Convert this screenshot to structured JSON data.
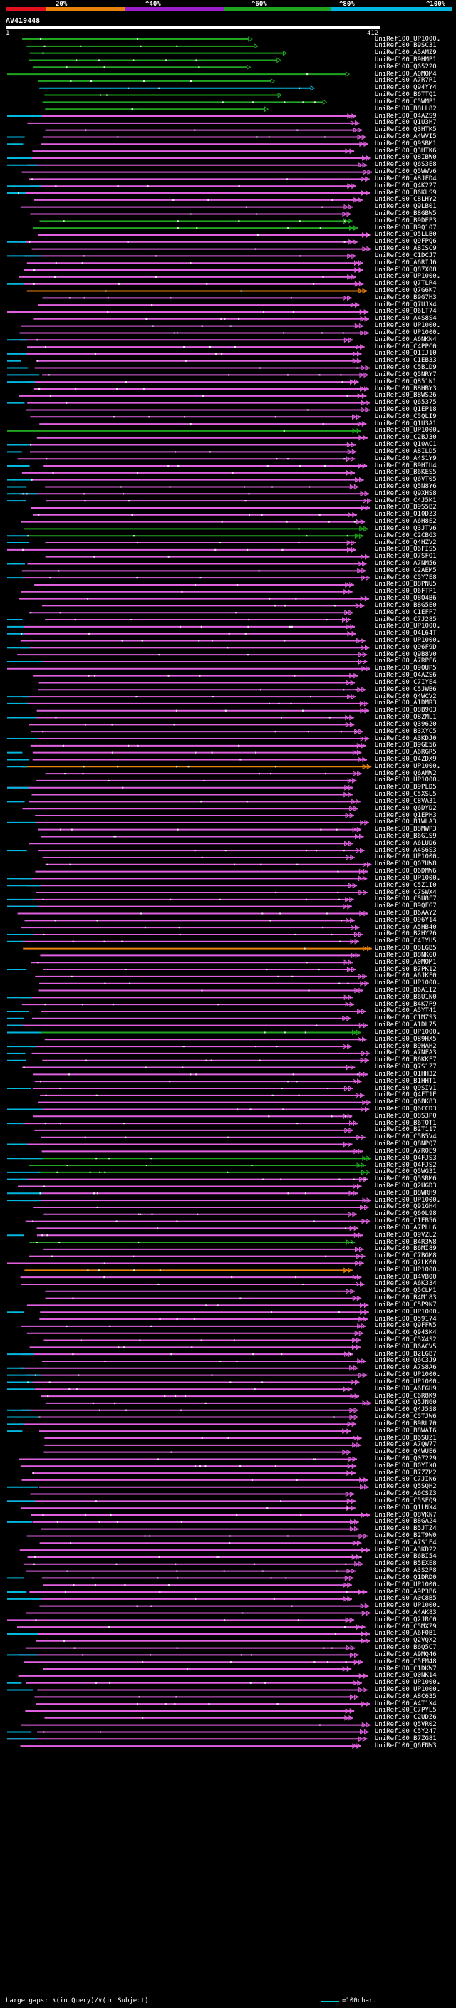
{
  "legend": {
    "labels": [
      "20%",
      "^40%",
      "^60%",
      "^80%",
      "^100%"
    ],
    "colors": [
      "#e0101c",
      "#e8820c",
      "#9b1fcf",
      "#1fa51f",
      "#00b7e0"
    ]
  },
  "query": {
    "name": "AV419448",
    "start": "1",
    "end": "412"
  },
  "colors": {
    "magenta": "#e060e0",
    "green": "#1fa51f",
    "cyan": "#00b7e0",
    "orange": "#e8820c",
    "white": "#ffffff"
  },
  "footer": {
    "gap_text": "Large gaps: ∧(in Query)/∨(in Subject)",
    "scale_text": "=100char."
  },
  "hits": [
    "UniRef100_UP1000…",
    "UniRef100_B9SC31",
    "UniRef100_A5AMZ9",
    "UniRef100_B9HMP1",
    "UniRef100_Q65220",
    "UniRef100_A0MQM4",
    "UniRef100_A7R7R1",
    "UniRef100_Q94YY4",
    "UniRef100_B6TTQ1",
    "UniRef100_C5WMP1",
    "UniRef100_B8LL82",
    "UniRef100_Q4AZS9",
    "UniRef100_Q1U3H7",
    "UniRef100_Q3HTK5",
    "UniRef100_A4WVI5",
    "UniRef100_Q9SBM1",
    "UniRef100_Q3HTK6",
    "UniRef100_Q8IBW0",
    "UniRef100_Q6S3E8",
    "UniRef100_Q5WWV6",
    "UniRef100_A8JFD4",
    "UniRef100_Q4K227",
    "UniRef100_B6KLS9",
    "UniRef100_C8LHY2",
    "UniRef100_Q9LB01",
    "UniRef100_B8GBW5",
    "UniRef100_B9DEP3",
    "UniRef100_B9Q107",
    "UniRef100_Q5LLB0",
    "UniRef100_Q9FPQ6",
    "UniRef100_A8ISC9",
    "UniRef100_C1DCJ7",
    "UniRef100_A6RIJ6",
    "UniRef100_Q87X08",
    "UniRef100_UP1000…",
    "UniRef100_Q7TLR4",
    "UniRef100_Q7G6K7",
    "UniRef100_B9G7H3",
    "UniRef100_Q7UJX4",
    "UniRef100_Q6LT74",
    "UniRef100_A4S8S4",
    "UniRef100_UP1000…",
    "UniRef100_UP1000…",
    "UniRef100_A6NKN4",
    "UniRef100_C4PPC0",
    "UniRef100_Q1IJ10",
    "UniRef100_C1EB33",
    "UniRef100_C5B1D9",
    "UniRef100_Q5NRY7",
    "UniRef100_Q851N1",
    "UniRef100_B8HBY3",
    "UniRef100_B8WS26",
    "UniRef100_Q65375",
    "UniRef100_Q1EP18",
    "UniRef100_C5QLI9",
    "UniRef100_Q1U3A1",
    "UniRef100_UP1000…",
    "UniRef100_C2BJ30",
    "UniRef100_Q10AC1",
    "UniRef100_A8ILD5",
    "UniRef100_A4S1Y9",
    "UniRef100_B9HIU4",
    "UniRef100_B6KES5",
    "UniRef100_Q6VT05",
    "UniRef100_Q5N8Y6",
    "UniRef100_Q9XHS8",
    "UniRef100_C4J5K1",
    "UniRef100_B9S5B2",
    "UniRef100_Q10DZ3",
    "UniRef100_A6H8E2",
    "UniRef100_Q3JTV6",
    "UniRef100_C2CBG3",
    "UniRef100_Q4HZV2",
    "UniRef100_Q6FIS5",
    "UniRef100_Q7SFQ1",
    "UniRef100_A7NM56",
    "UniRef100_C2AEM5",
    "UniRef100_C5Y7E8",
    "UniRef100_B8PNU5",
    "UniRef100_Q6FTP1",
    "UniRef100_Q8Q4B6",
    "UniRef100_B8G5E0",
    "UniRef100_C1EFP7",
    "UniRef100_C7J285",
    "UniRef100_UP1000…",
    "UniRef100_Q4L64T",
    "UniRef100_UP1000…",
    "UniRef100_Q96F9D",
    "UniRef100_Q9B8V0",
    "UniRef100_A7RPE6",
    "UniRef100_Q9QUP5",
    "UniRef100_Q4AZS6",
    "UniRef100_C7IYE4",
    "UniRef100_C5JWB6",
    "UniRef100_Q4WCV2",
    "UniRef100_A1DMR3",
    "UniRef100_Q8B9Q3",
    "UniRef100_Q8ZML1",
    "UniRef100_Q39620",
    "UniRef100_B3XYC5",
    "UniRef100_A3KDJ0",
    "UniRef100_B9GE56",
    "UniRef100_A6RGR5",
    "UniRef100_Q4ZDX9",
    "UniRef100_UP1000…",
    "UniRef100_Q6AMW2",
    "UniRef100_UP1000…",
    "UniRef100_B9PLD5",
    "UniRef100_C5XSL5",
    "UniRef100_C8VA31",
    "UniRef100_Q6DYD2",
    "UniRef100_Q1EPH3",
    "UniRef100_B1WLA3",
    "UniRef100_B8MWP3",
    "UniRef100_B6G1S9",
    "UniRef100_A6LUD6",
    "UniRef100_A4S6S3",
    "UniRef100_UP1000…",
    "UniRef100_Q07UW8",
    "UniRef100_Q6DMW6",
    "UniRef100_UP1000…",
    "UniRef100_C5Z1I0",
    "UniRef100_C7SWX4",
    "UniRef100_C5U8F7",
    "UniRef100_B9QFG7",
    "UniRef100_B6AAY2",
    "UniRef100_Q96Y14",
    "UniRef100_A5HB40",
    "UniRef100_B2HY26",
    "UniRef100_C4IYU5",
    "UniRef100_Q8LGB5",
    "UniRef100_B8NKG0",
    "UniRef100_A0MQM1",
    "UniRef100_B7PK12",
    "UniRef100_A6JKF0",
    "UniRef100_UP1000…",
    "UniRef100_B6A1I2",
    "UniRef100_B6U1N0",
    "UniRef100_B4K7P9",
    "UniRef100_A5YT41",
    "UniRef100_C1MZS3",
    "UniRef100_A1DL75",
    "UniRef100_UP1000…",
    "UniRef100_Q89HX5",
    "UniRef100_B9HAH2",
    "UniRef100_A7NFA3",
    "UniRef100_B6KKF7",
    "UniRef100_Q7S1Z7",
    "UniRef100_Q1HH32",
    "UniRef100_B1HHT1",
    "UniRef100_Q9SIV1",
    "UniRef100_Q4FT1E",
    "UniRef100_Q6BK83",
    "UniRef100_Q6CCD3",
    "UniRef100_Q8S3P0",
    "UniRef100_B6TOT1",
    "UniRef100_B2T117",
    "UniRef100_C5B5V4",
    "UniRef100_Q8NPQ7",
    "UniRef100_A7R0E9",
    "UniRef100_Q4FJS3",
    "UniRef100_Q4FJS2",
    "UniRef100_Q5WG31",
    "UniRef100_Q5SRM6",
    "UniRef100_Q2UGD3",
    "UniRef100_B8WRH9",
    "UniRef100_UP1000…",
    "UniRef100_Q91GH4",
    "UniRef100_Q60L98",
    "UniRef100_C1EB56",
    "UniRef100_A7PLL6",
    "UniRef100_Q9VZL2",
    "UniRef100_B4R3W8",
    "UniRef100_B6MI89",
    "UniRef100_C7BGM8",
    "UniRef100_Q2LK00",
    "UniRef100_UP1000…",
    "UniRef100_B4VB00",
    "UniRef100_A6K334",
    "UniRef100_Q5CLM1",
    "UniRef100_B4M183",
    "UniRef100_C5P9N7",
    "UniRef100_UP1000…",
    "UniRef100_Q59174",
    "UniRef100_Q9FFW5",
    "UniRef100_Q94SK4",
    "UniRef100_C5X4S2",
    "UniRef100_B6ACV5",
    "UniRef100_B2LGB7",
    "UniRef100_Q6C3J9",
    "UniRef100_A7S8A6",
    "UniRef100_UP1000…",
    "UniRef100_UP1000…",
    "UniRef100_A6FGU9",
    "UniRef100_C6R8K9",
    "UniRef100_Q5JN60",
    "UniRef100_Q4J5S8",
    "UniRef100_C5TJW6",
    "UniRef100_B9RL70",
    "UniRef100_B8WAT6",
    "UniRef100_B6SUZ1",
    "UniRef100_A7QW77",
    "UniRef100_Q4WUE6",
    "UniRef100_Q07229",
    "UniRef100_B0YIX0",
    "UniRef100_B7ZZM2",
    "UniRef100_C7JIN6",
    "UniRef100_Q5SQH2",
    "UniRef100_A6CSZ3",
    "UniRef100_C5SFQ9",
    "UniRef100_Q1LNX4",
    "UniRef100_Q8VKN7",
    "UniRef100_B8GA24",
    "UniRef100_B5JTZ4",
    "UniRef100_B2T9W0",
    "UniRef100_A7S1E4",
    "UniRef100_A3KD22",
    "UniRef100_B6BI54",
    "UniRef100_B5EXE8",
    "UniRef100_A3S2P8",
    "UniRef100_Q1DRD0",
    "UniRef100_UP1000…",
    "UniRef100_A9P3B6",
    "UniRef100_A0C8B5",
    "UniRef100_UP1000…",
    "UniRef100_A4AK83",
    "UniRef100_Q2JRC0",
    "UniRef100_C5MXZ9",
    "UniRef100_A6F0B1",
    "UniRef100_Q2VQX2",
    "UniRef100_B6Q5C7",
    "UniRef100_A9MQ46",
    "UniRef100_C5FM48",
    "UniRef100_C1DKW7",
    "UniRef100_Q0NK14",
    "UniRef100_UP1000…",
    "UniRef100_UP1000…",
    "UniRef100_A8C635",
    "UniRef100_A4T1X4",
    "UniRef100_C7PYL5",
    "UniRef100_C2UDZ6",
    "UniRef100_Q5VR02",
    "UniRef100_C5Y247",
    "UniRef100_B7ZG81",
    "UniRef100_Q6FNW3"
  ]
}
